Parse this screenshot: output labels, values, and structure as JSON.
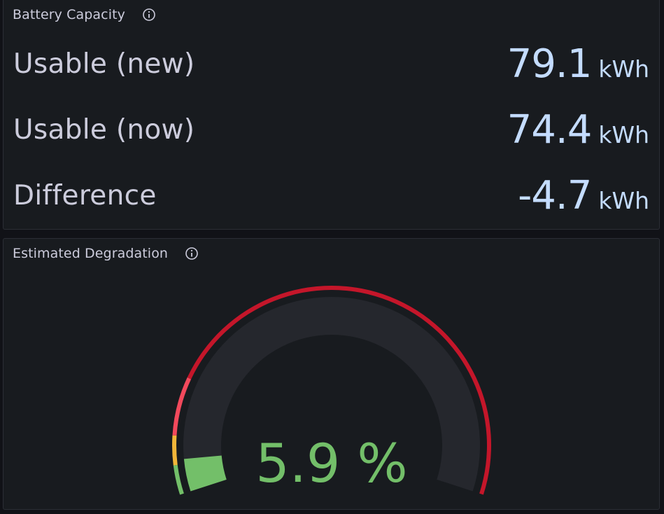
{
  "battery_capacity": {
    "title": "Battery Capacity",
    "info_icon": "info-icon",
    "rows": [
      {
        "label": "Usable (new)",
        "value": "79.1",
        "unit": "kWh"
      },
      {
        "label": "Usable (now)",
        "value": "74.4",
        "unit": "kWh"
      },
      {
        "label": "Difference",
        "value": "-4.7",
        "unit": "kWh"
      }
    ]
  },
  "degradation": {
    "title": "Estimated Degradation",
    "info_icon": "info-icon",
    "value": 5.9,
    "display": "5.9 %",
    "gauge_min": 0,
    "gauge_max": 100,
    "thresholds": [
      {
        "from": 0,
        "to": 5,
        "color": "#73bf69"
      },
      {
        "from": 5,
        "to": 10,
        "color": "#f2b639"
      },
      {
        "from": 10,
        "to": 20,
        "color": "#f2495c"
      },
      {
        "from": 20,
        "to": 100,
        "color": "#c4162a"
      }
    ],
    "colors": {
      "value": "#73bf69",
      "track": "#25272d"
    }
  }
}
